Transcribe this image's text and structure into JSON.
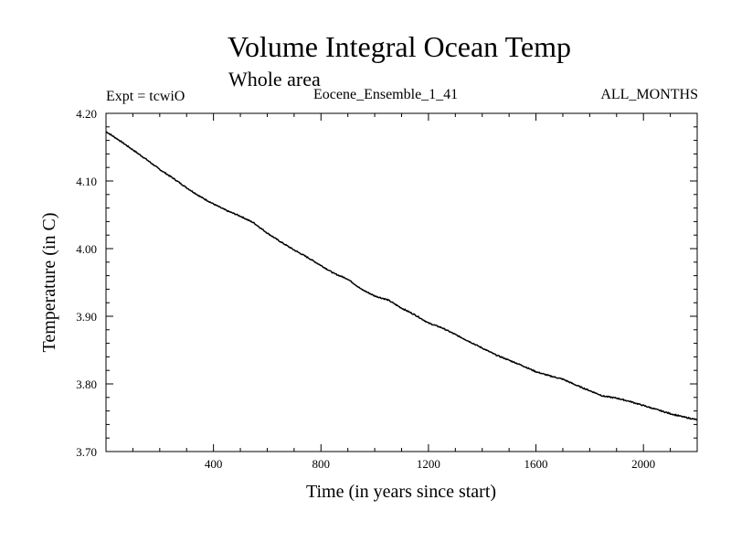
{
  "chart_data": {
    "type": "line",
    "title": "Volume Integral Ocean Temp",
    "subtitle": "Whole area",
    "experiment": "Expt = tcwiO",
    "ensemble": "Eocene_Ensemble_1_41",
    "period": "ALL_MONTHS",
    "xlabel": "Time (in years since start)",
    "ylabel": "Temperature (in C)",
    "xlim": [
      0,
      2200
    ],
    "ylim": [
      3.7,
      4.2
    ],
    "x_ticks": [
      400,
      800,
      1200,
      1600,
      2000
    ],
    "x_tick_labels": [
      "400",
      "800",
      "1200",
      "1600",
      "2000"
    ],
    "y_ticks": [
      3.7,
      3.8,
      3.9,
      4.0,
      4.1,
      4.2
    ],
    "y_tick_labels": [
      "3.70",
      "3.80",
      "3.90",
      "4.00",
      "4.10",
      "4.20"
    ],
    "series": [
      {
        "color": "#000000",
        "x": [
          0,
          50,
          100,
          150,
          200,
          250,
          300,
          350,
          400,
          450,
          500,
          550,
          600,
          650,
          700,
          750,
          800,
          850,
          900,
          950,
          1000,
          1050,
          1100,
          1150,
          1200,
          1250,
          1300,
          1350,
          1400,
          1450,
          1500,
          1550,
          1600,
          1650,
          1700,
          1750,
          1800,
          1850,
          1900,
          1950,
          2000,
          2050,
          2100,
          2150,
          2200
        ],
        "y": [
          4.173,
          4.16,
          4.146,
          4.132,
          4.117,
          4.104,
          4.09,
          4.077,
          4.066,
          4.056,
          4.048,
          4.038,
          4.023,
          4.01,
          3.998,
          3.987,
          3.975,
          3.963,
          3.955,
          3.94,
          3.93,
          3.924,
          3.912,
          3.902,
          3.89,
          3.883,
          3.873,
          3.863,
          3.853,
          3.843,
          3.835,
          3.827,
          3.818,
          3.812,
          3.807,
          3.798,
          3.79,
          3.782,
          3.779,
          3.774,
          3.768,
          3.762,
          3.756,
          3.751,
          3.747
        ]
      }
    ]
  }
}
